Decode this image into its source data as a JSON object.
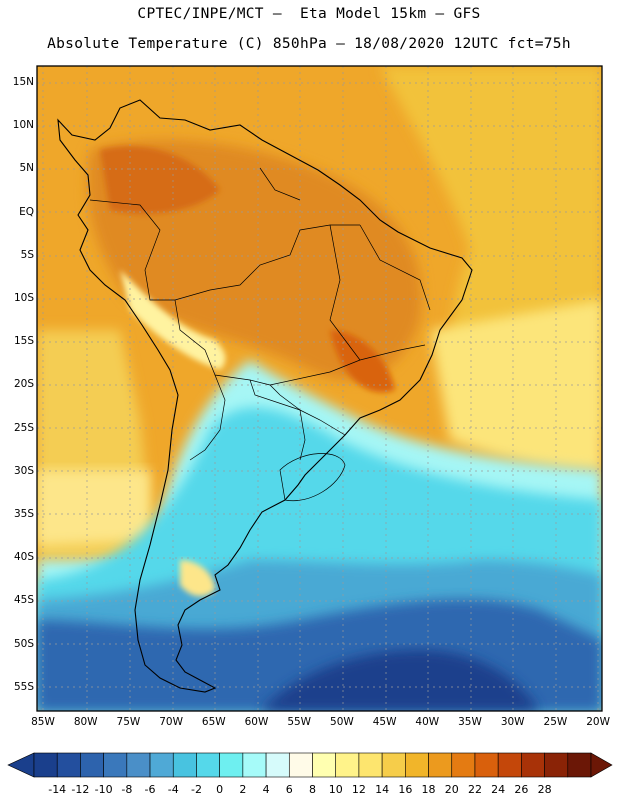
{
  "title_line1": "CPTEC/INPE/MCT –  Eta Model 15km – GFS",
  "title_line2": "Absolute Temperature (C) 850hPa – 18/08/2020 12UTC fct=75h",
  "lat_labels": [
    "15N",
    "10N",
    "5N",
    "EQ",
    "5S",
    "10S",
    "15S",
    "20S",
    "25S",
    "30S",
    "35S",
    "40S",
    "45S",
    "50S",
    "55S"
  ],
  "lon_labels": [
    "85W",
    "80W",
    "75W",
    "70W",
    "65W",
    "60W",
    "55W",
    "50W",
    "45W",
    "40W",
    "35W",
    "30W",
    "25W",
    "20W"
  ],
  "colorbar": {
    "labels": [
      "-14",
      "-12",
      "-10",
      "-8",
      "-6",
      "-4",
      "-2",
      "0",
      "2",
      "4",
      "6",
      "8",
      "10",
      "12",
      "14",
      "16",
      "18",
      "20",
      "22",
      "24",
      "26",
      "28"
    ],
    "colors": [
      "#1a3f8c",
      "#234f9e",
      "#2d63ad",
      "#3a78bb",
      "#4a8fc8",
      "#4fa9d6",
      "#48c3e0",
      "#55d8ea",
      "#6eeff0",
      "#a6fbf9",
      "#d6fbfb",
      "#fffbe8",
      "#ffffb0",
      "#fff38a",
      "#fde56e",
      "#f6cd4a",
      "#f1b52a",
      "#ec9a1e",
      "#e47b12",
      "#d9600c",
      "#c4470a",
      "#a83208",
      "#8a2306",
      "#6b1706"
    ]
  },
  "regions": [
    {
      "name": "tropical-orange",
      "color": "#e79022"
    },
    {
      "name": "atlantic-yellow",
      "color": "#f2c33b"
    },
    {
      "name": "andes-warm",
      "color": "#d96b12"
    },
    {
      "name": "subtropical-cyan",
      "color": "#5ad7e8"
    },
    {
      "name": "southern-blue",
      "color": "#2d63ad"
    },
    {
      "name": "polar-deep-blue",
      "color": "#1a3f8c"
    }
  ]
}
